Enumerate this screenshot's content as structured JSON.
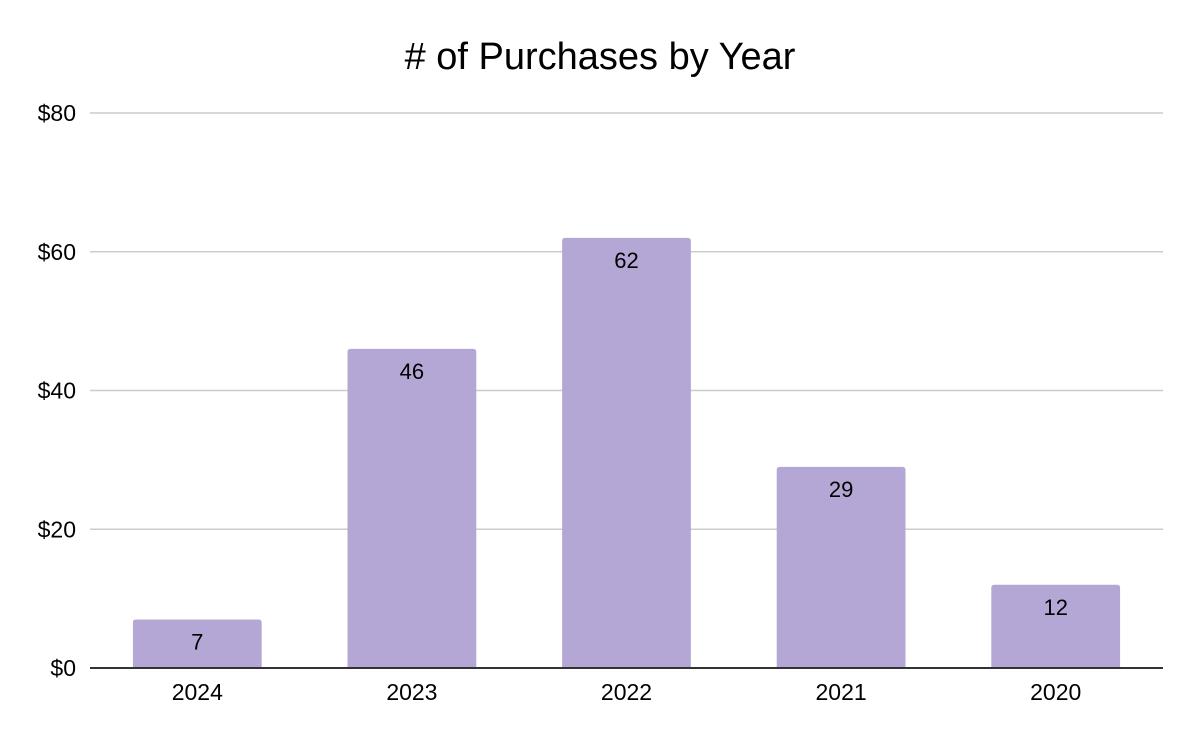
{
  "chart_data": {
    "type": "bar",
    "title": "# of Purchases by Year",
    "xlabel": "",
    "ylabel": "",
    "categories": [
      "2024",
      "2023",
      "2022",
      "2021",
      "2020"
    ],
    "values": [
      7,
      46,
      62,
      29,
      12
    ],
    "data_labels": [
      "7",
      "46",
      "62",
      "29",
      "12"
    ],
    "ylim": [
      0,
      80
    ],
    "yticks": [
      0,
      20,
      40,
      60,
      80
    ],
    "ytick_labels": [
      "$0",
      "$20",
      "$40",
      "$60",
      "$80"
    ],
    "grid": true,
    "legend": "none",
    "colors": {
      "bar": "#b4a7d6",
      "grid": "#cccccc",
      "axis": "#333333",
      "text": "#000000"
    }
  }
}
